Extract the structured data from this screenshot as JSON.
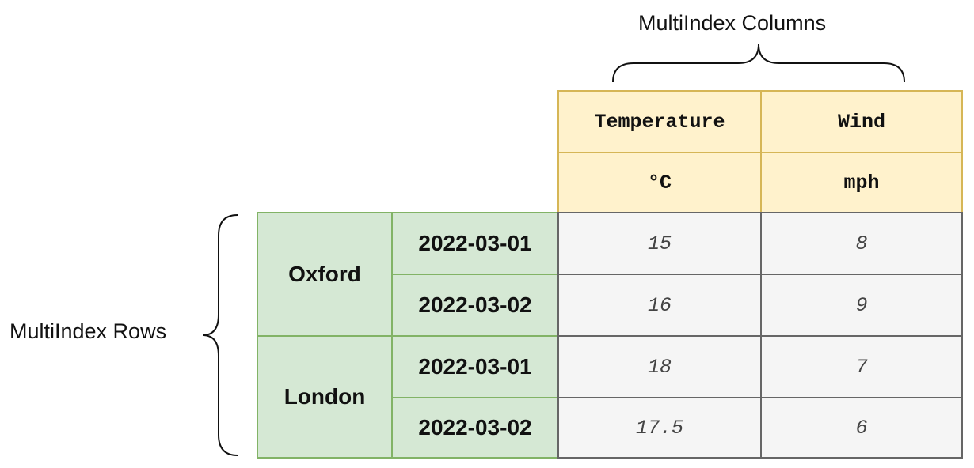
{
  "annotations": {
    "columns_label": "MultiIndex Columns",
    "rows_label": "MultiIndex Rows"
  },
  "header": {
    "level0": [
      "Temperature",
      "Wind"
    ],
    "level1": [
      "°C",
      "mph"
    ]
  },
  "index": {
    "cities": [
      "Oxford",
      "London"
    ],
    "dates": [
      "2022-03-01",
      "2022-03-02",
      "2022-03-01",
      "2022-03-02"
    ]
  },
  "values": [
    [
      "15",
      "8"
    ],
    [
      "16",
      "9"
    ],
    [
      "18",
      "7"
    ],
    [
      "17.5",
      "6"
    ]
  ],
  "colors": {
    "header_fill": "#fff2cc",
    "header_border": "#d6b656",
    "index_fill": "#d5e8d4",
    "index_border": "#82b366",
    "value_fill": "#f5f5f5",
    "value_border": "#666666"
  }
}
